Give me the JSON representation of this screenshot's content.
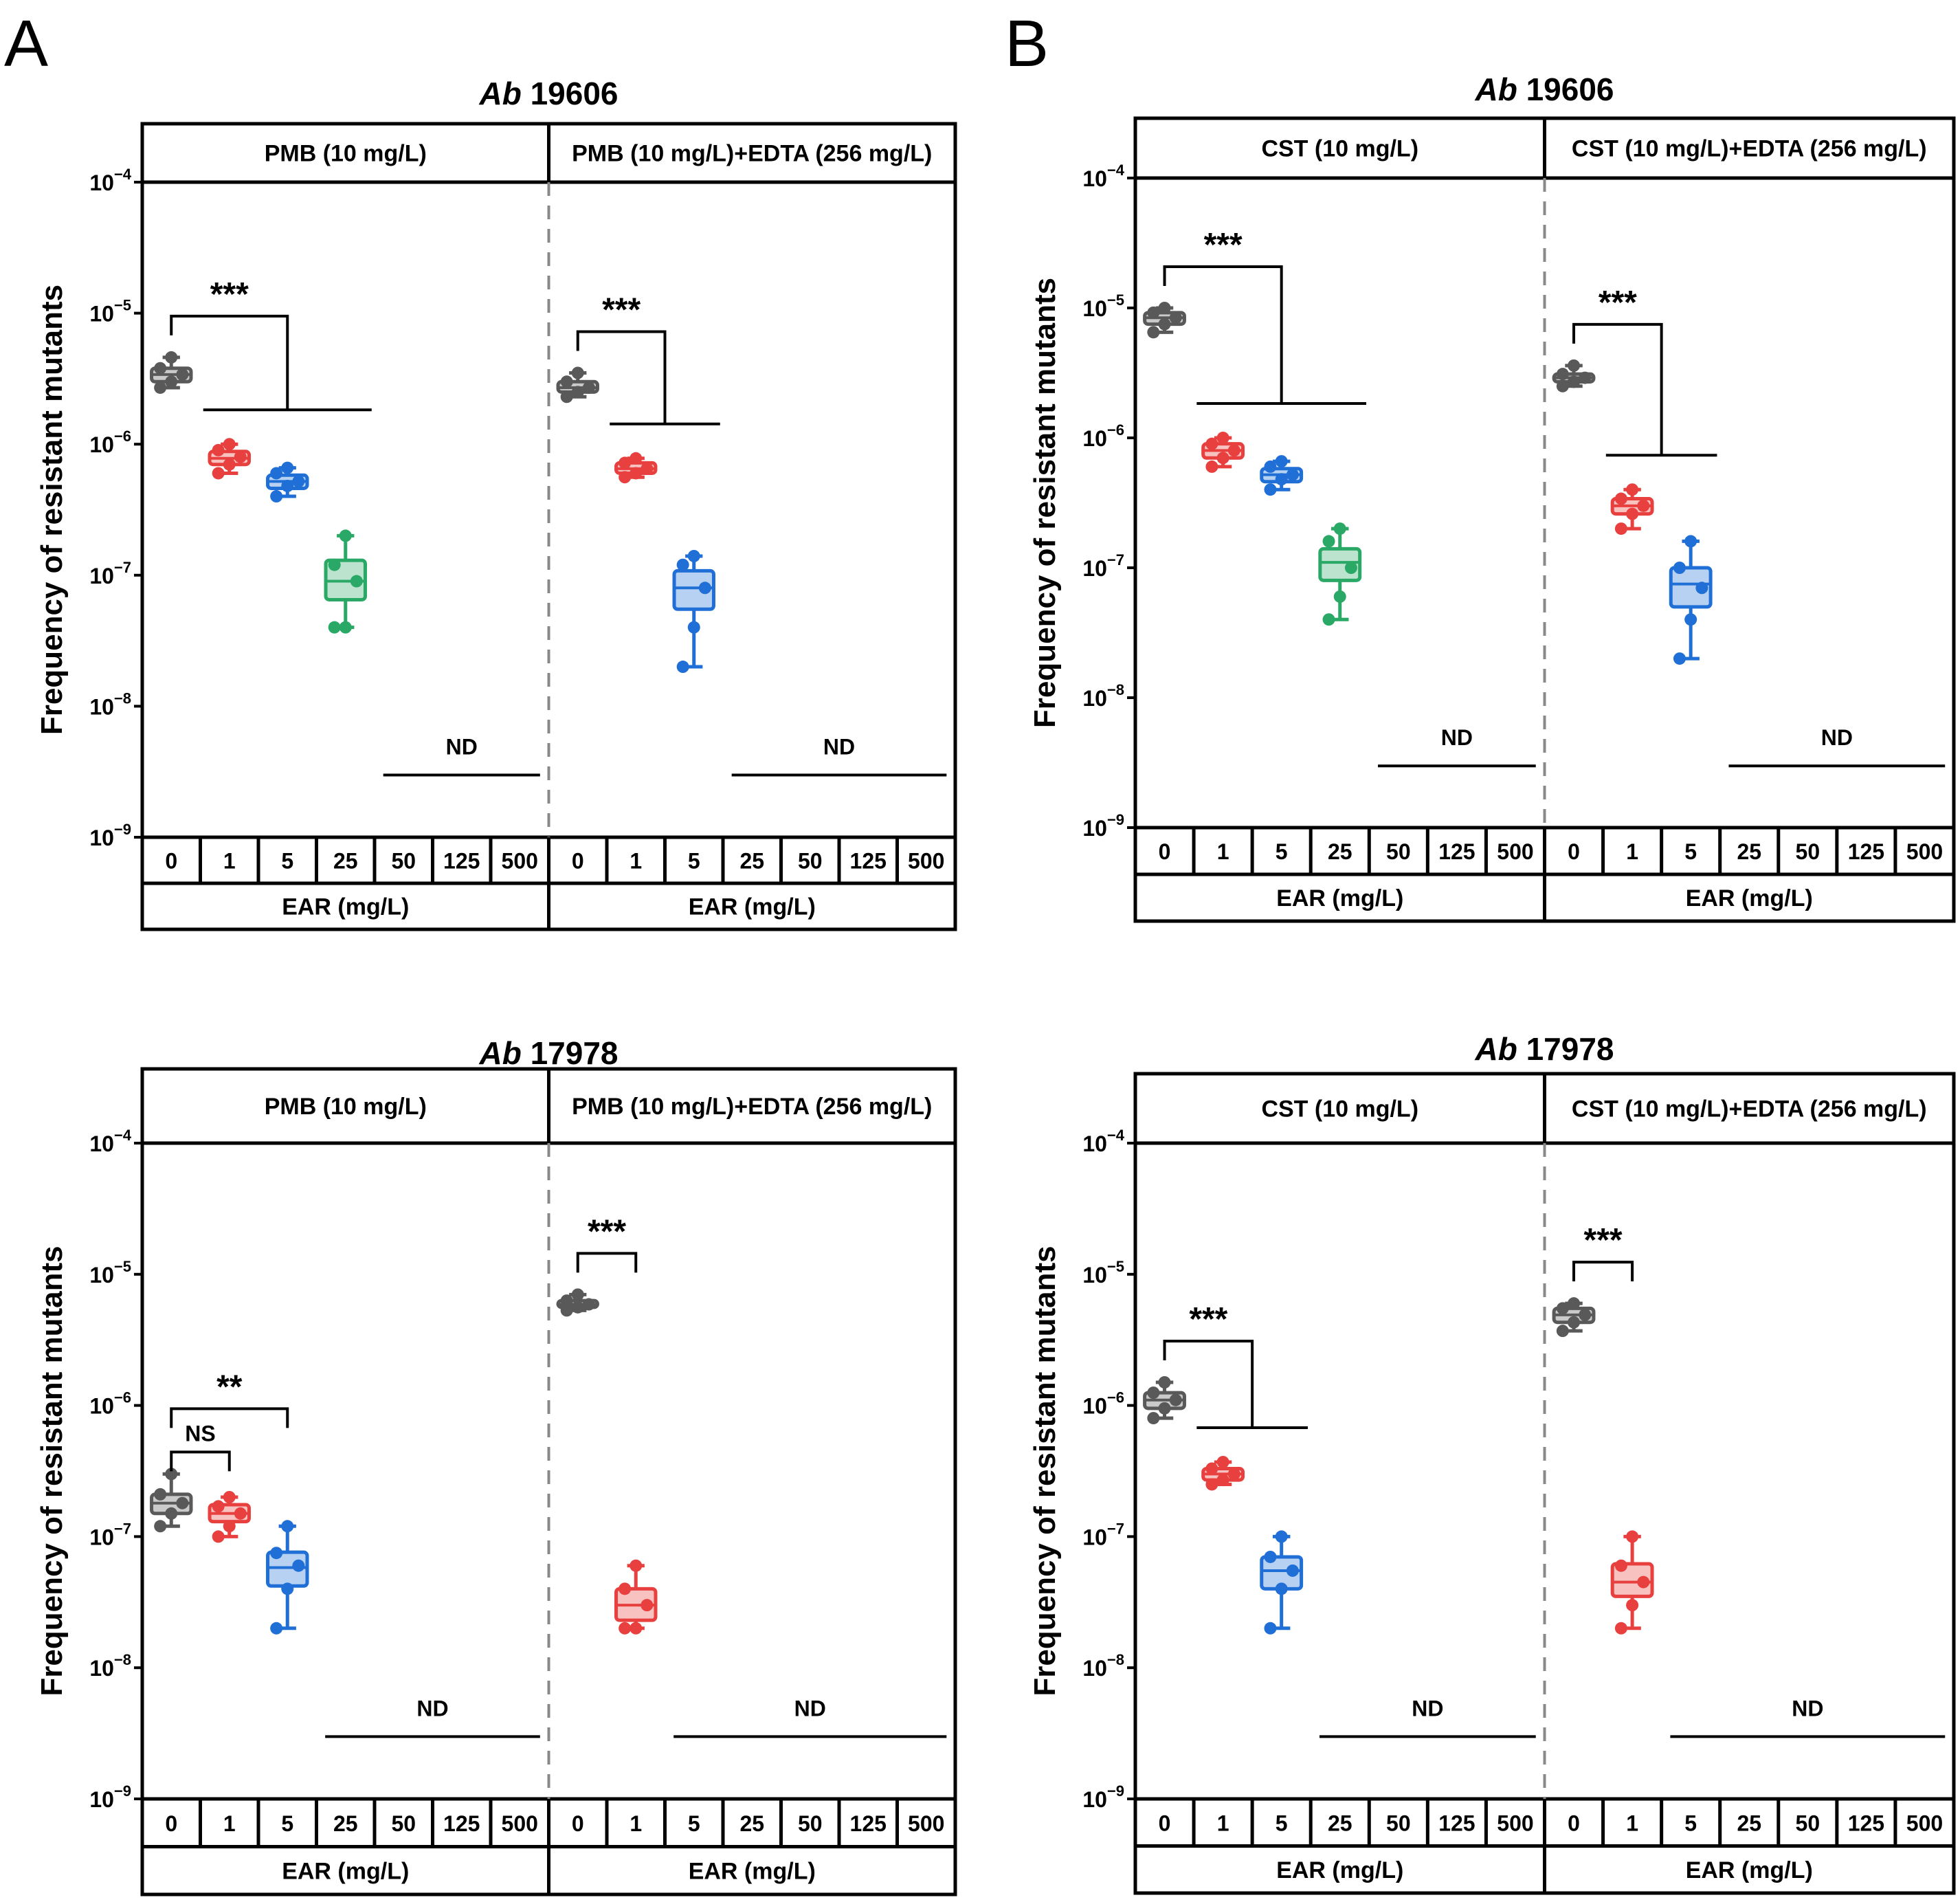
{
  "figure": {
    "panel_letters": [
      "A",
      "B"
    ],
    "y_axis_label": "Frequency of resistant mutants",
    "y_ticks": [
      {
        "base": "10",
        "exp": "−4"
      },
      {
        "base": "10",
        "exp": "−5"
      },
      {
        "base": "10",
        "exp": "−6"
      },
      {
        "base": "10",
        "exp": "−7"
      },
      {
        "base": "10",
        "exp": "−8"
      },
      {
        "base": "10",
        "exp": "−9"
      }
    ],
    "x_axis_label": "EAR (mg/L)",
    "nd_label": "ND",
    "colors": {
      "0": "#595959",
      "1": "#e8403f",
      "5": "#1f6fd6",
      "25": "#2aa866"
    }
  },
  "chart_data": [
    {
      "type": "boxplot",
      "panel": "A",
      "title": {
        "italic": "Ab",
        "rest": " 19606"
      },
      "ylabel": "Frequency of resistant mutants",
      "xlabel": "EAR (mg/L)",
      "yscale": "log",
      "ylim": [
        1e-09,
        0.0001
      ],
      "groups": [
        {
          "header": "PMB (10 mg/L)",
          "categories": [
            "0",
            "1",
            "5",
            "25",
            "50",
            "125",
            "500"
          ],
          "boxes": [
            {
              "x": "0",
              "min": 2.7e-06,
              "q1": 3e-06,
              "median": 3.4e-06,
              "q3": 3.8e-06,
              "max": 4.6e-06,
              "points": [
                2.7e-06,
                3e-06,
                3.4e-06,
                3.8e-06,
                4.6e-06
              ]
            },
            {
              "x": "1",
              "min": 6e-07,
              "q1": 7e-07,
              "median": 7.8e-07,
              "q3": 8.8e-07,
              "max": 1e-06,
              "points": [
                6e-07,
                7e-07,
                8e-07,
                9e-07,
                1e-06
              ]
            },
            {
              "x": "5",
              "min": 4e-07,
              "q1": 4.6e-07,
              "median": 5.2e-07,
              "q3": 5.8e-07,
              "max": 6.6e-07,
              "points": [
                4e-07,
                4.8e-07,
                5.2e-07,
                6e-07,
                6.6e-07
              ]
            },
            {
              "x": "25",
              "min": 4e-08,
              "q1": 6.5e-08,
              "median": 9e-08,
              "q3": 1.3e-07,
              "max": 2e-07,
              "points": [
                4e-08,
                4e-08,
                9e-08,
                1.2e-07,
                2e-07
              ]
            }
          ],
          "nd_from": "50",
          "significance": [
            {
              "label": "***",
              "from": "0",
              "to": [
                "1",
                "25"
              ]
            }
          ]
        },
        {
          "header": "PMB (10 mg/L)+EDTA (256 mg/L)",
          "categories": [
            "0",
            "1",
            "5",
            "25",
            "50",
            "125",
            "500"
          ],
          "boxes": [
            {
              "x": "0",
              "min": 2.3e-06,
              "q1": 2.5e-06,
              "median": 2.7e-06,
              "q3": 3e-06,
              "max": 3.5e-06,
              "points": [
                2.3e-06,
                2.5e-06,
                2.7e-06,
                3e-06,
                3.5e-06
              ]
            },
            {
              "x": "1",
              "min": 5.6e-07,
              "q1": 6e-07,
              "median": 6.5e-07,
              "q3": 7.2e-07,
              "max": 7.8e-07,
              "points": [
                5.6e-07,
                6e-07,
                6.5e-07,
                7.2e-07,
                7.8e-07
              ]
            },
            {
              "x": "5",
              "min": 2e-08,
              "q1": 5.5e-08,
              "median": 8e-08,
              "q3": 1.08e-07,
              "max": 1.4e-07,
              "points": [
                2e-08,
                4e-08,
                8e-08,
                1.2e-07,
                1.4e-07
              ]
            }
          ],
          "nd_from": "25",
          "significance": [
            {
              "label": "***",
              "from": "0",
              "to": [
                "1",
                "5"
              ]
            }
          ]
        }
      ]
    },
    {
      "type": "boxplot",
      "panel": "B",
      "title": {
        "italic": "Ab",
        "rest": " 19606"
      },
      "ylabel": "Frequency of resistant mutants",
      "xlabel": "EAR (mg/L)",
      "yscale": "log",
      "ylim": [
        1e-09,
        0.0001
      ],
      "groups": [
        {
          "header": "CST (10 mg/L)",
          "categories": [
            "0",
            "1",
            "5",
            "25",
            "50",
            "125",
            "500"
          ],
          "boxes": [
            {
              "x": "0",
              "min": 6.5e-06,
              "q1": 7.5e-06,
              "median": 8.4e-06,
              "q3": 9.2e-06,
              "max": 1e-05,
              "points": [
                6.5e-06,
                7.5e-06,
                8.4e-06,
                9.2e-06,
                1e-05
              ]
            },
            {
              "x": "1",
              "min": 6e-07,
              "q1": 7e-07,
              "median": 8e-07,
              "q3": 9e-07,
              "max": 1e-06,
              "points": [
                6e-07,
                7e-07,
                8e-07,
                9e-07,
                1e-06
              ]
            },
            {
              "x": "5",
              "min": 4e-07,
              "q1": 4.6e-07,
              "median": 5.2e-07,
              "q3": 5.8e-07,
              "max": 6.6e-07,
              "points": [
                4e-07,
                4.8e-07,
                5.2e-07,
                6e-07,
                6.6e-07
              ]
            },
            {
              "x": "25",
              "min": 4e-08,
              "q1": 8e-08,
              "median": 1.1e-07,
              "q3": 1.4e-07,
              "max": 2e-07,
              "points": [
                4e-08,
                6e-08,
                1e-07,
                1.6e-07,
                2e-07
              ]
            }
          ],
          "nd_from": "50",
          "significance": [
            {
              "label": "***",
              "from": "0",
              "to": [
                "1",
                "25"
              ]
            }
          ]
        },
        {
          "header": "CST (10 mg/L)+EDTA (256 mg/L)",
          "categories": [
            "0",
            "1",
            "5",
            "25",
            "50",
            "125",
            "500"
          ],
          "boxes": [
            {
              "x": "0",
              "min": 2.5e-06,
              "q1": 2.7e-06,
              "median": 2.9e-06,
              "q3": 3.1e-06,
              "max": 3.6e-06,
              "points": [
                2.5e-06,
                2.7e-06,
                2.9e-06,
                3.1e-06,
                3.6e-06
              ]
            },
            {
              "x": "1",
              "min": 2e-07,
              "q1": 2.6e-07,
              "median": 3e-07,
              "q3": 3.4e-07,
              "max": 4e-07,
              "points": [
                2e-07,
                2.6e-07,
                3e-07,
                3.4e-07,
                4e-07
              ]
            },
            {
              "x": "5",
              "min": 2e-08,
              "q1": 5e-08,
              "median": 7.5e-08,
              "q3": 1e-07,
              "max": 1.6e-07,
              "points": [
                2e-08,
                4e-08,
                7e-08,
                1e-07,
                1.6e-07
              ]
            }
          ],
          "nd_from": "25",
          "significance": [
            {
              "label": "***",
              "from": "0",
              "to": [
                "1",
                "5"
              ]
            }
          ]
        }
      ]
    },
    {
      "type": "boxplot",
      "panel": "A",
      "title": {
        "italic": "Ab",
        "rest": " 17978"
      },
      "ylabel": "Frequency of resistant mutants",
      "xlabel": "EAR (mg/L)",
      "yscale": "log",
      "ylim": [
        1e-09,
        0.0001
      ],
      "groups": [
        {
          "header": "PMB (10 mg/L)",
          "categories": [
            "0",
            "1",
            "5",
            "25",
            "50",
            "125",
            "500"
          ],
          "boxes": [
            {
              "x": "0",
              "min": 1.2e-07,
              "q1": 1.5e-07,
              "median": 1.8e-07,
              "q3": 2.1e-07,
              "max": 3e-07,
              "points": [
                1.2e-07,
                1.5e-07,
                1.8e-07,
                2.1e-07,
                3e-07
              ]
            },
            {
              "x": "1",
              "min": 1e-07,
              "q1": 1.3e-07,
              "median": 1.5e-07,
              "q3": 1.75e-07,
              "max": 2e-07,
              "points": [
                1e-07,
                1.2e-07,
                1.5e-07,
                1.7e-07,
                2e-07
              ]
            },
            {
              "x": "5",
              "min": 2e-08,
              "q1": 4.2e-08,
              "median": 5.8e-08,
              "q3": 7.6e-08,
              "max": 1.2e-07,
              "points": [
                2e-08,
                4e-08,
                6e-08,
                7.5e-08,
                1.2e-07
              ]
            }
          ],
          "nd_from": "25",
          "significance": [
            {
              "label": "**",
              "from": "0",
              "to": [
                "5"
              ]
            },
            {
              "label": "NS",
              "from": "0",
              "to": [
                "1"
              ]
            }
          ]
        },
        {
          "header": "PMB (10 mg/L)+EDTA (256 mg/L)",
          "categories": [
            "0",
            "1",
            "5",
            "25",
            "50",
            "125",
            "500"
          ],
          "boxes": [
            {
              "x": "0",
              "min": 5.3e-06,
              "q1": 5.6e-06,
              "median": 5.9e-06,
              "q3": 6.3e-06,
              "max": 7e-06,
              "points": [
                5.3e-06,
                5.6e-06,
                5.9e-06,
                6.3e-06,
                7e-06
              ]
            },
            {
              "x": "1",
              "min": 2e-08,
              "q1": 2.3e-08,
              "median": 3e-08,
              "q3": 4e-08,
              "max": 6e-08,
              "points": [
                2e-08,
                2e-08,
                3e-08,
                4e-08,
                6e-08
              ]
            }
          ],
          "nd_from": "5",
          "significance": [
            {
              "label": "***",
              "from": "0",
              "to": [
                "1"
              ]
            }
          ]
        }
      ]
    },
    {
      "type": "boxplot",
      "panel": "B",
      "title": {
        "italic": "Ab",
        "rest": " 17978"
      },
      "ylabel": "Frequency of resistant mutants",
      "xlabel": "EAR (mg/L)",
      "yscale": "log",
      "ylim": [
        1e-09,
        0.0001
      ],
      "groups": [
        {
          "header": "CST (10 mg/L)",
          "categories": [
            "0",
            "1",
            "5",
            "25",
            "50",
            "125",
            "500"
          ],
          "boxes": [
            {
              "x": "0",
              "min": 8e-07,
              "q1": 9.5e-07,
              "median": 1.1e-06,
              "q3": 1.25e-06,
              "max": 1.5e-06,
              "points": [
                8e-07,
                9.5e-07,
                1.1e-06,
                1.25e-06,
                1.5e-06
              ]
            },
            {
              "x": "1",
              "min": 2.5e-07,
              "q1": 2.7e-07,
              "median": 3e-07,
              "q3": 3.3e-07,
              "max": 3.7e-07,
              "points": [
                2.5e-07,
                2.7e-07,
                3e-07,
                3.3e-07,
                3.7e-07
              ]
            },
            {
              "x": "5",
              "min": 2e-08,
              "q1": 4e-08,
              "median": 5.5e-08,
              "q3": 7e-08,
              "max": 1e-07,
              "points": [
                2e-08,
                4e-08,
                5.5e-08,
                7e-08,
                1e-07
              ]
            }
          ],
          "nd_from": "25",
          "significance": [
            {
              "label": "***",
              "from": "0",
              "to": [
                "1",
                "5"
              ]
            }
          ]
        },
        {
          "header": "CST (10 mg/L)+EDTA (256 mg/L)",
          "categories": [
            "0",
            "1",
            "5",
            "25",
            "50",
            "125",
            "500"
          ],
          "boxes": [
            {
              "x": "0",
              "min": 3.7e-06,
              "q1": 4.3e-06,
              "median": 4.9e-06,
              "q3": 5.5e-06,
              "max": 6e-06,
              "points": [
                3.7e-06,
                4.3e-06,
                4.9e-06,
                5.5e-06,
                6e-06
              ]
            },
            {
              "x": "1",
              "min": 2e-08,
              "q1": 3.5e-08,
              "median": 4.5e-08,
              "q3": 6.2e-08,
              "max": 1e-07,
              "points": [
                2e-08,
                3e-08,
                4.5e-08,
                6e-08,
                1e-07
              ]
            }
          ],
          "nd_from": "5",
          "significance": [
            {
              "label": "***",
              "from": "0",
              "to": [
                "1"
              ]
            }
          ]
        }
      ]
    }
  ]
}
